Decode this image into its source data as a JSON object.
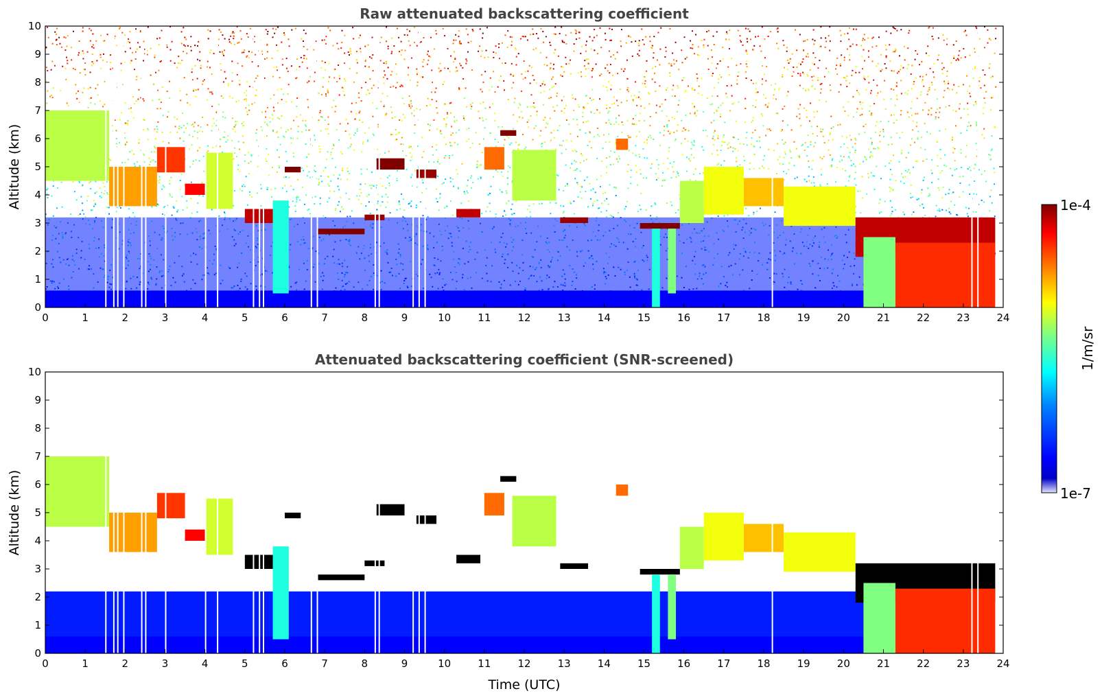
{
  "chart_data": [
    {
      "type": "heatmap",
      "title": "Raw attenuated backscattering coefficient",
      "ylabel": "Altitude (km)",
      "xlabel": "",
      "xlim": [
        0,
        24
      ],
      "ylim": [
        0,
        10
      ],
      "xticks": [
        "0",
        "1",
        "2",
        "3",
        "4",
        "5",
        "6",
        "7",
        "8",
        "9",
        "10",
        "11",
        "12",
        "13",
        "14",
        "15",
        "16",
        "17",
        "18",
        "19",
        "20",
        "21",
        "22",
        "23",
        "24"
      ],
      "yticks": [
        "0",
        "1",
        "2",
        "3",
        "4",
        "5",
        "6",
        "7",
        "8",
        "9",
        "10"
      ],
      "noise_above_clouds": true,
      "layers": [
        {
          "t0": 0.0,
          "t1": 1.6,
          "h0": 4.5,
          "h1": 7.0,
          "value": 0.6
        },
        {
          "t0": 1.6,
          "t1": 2.8,
          "h0": 3.6,
          "h1": 5.0,
          "value": 0.75
        },
        {
          "t0": 2.8,
          "t1": 3.5,
          "h0": 4.8,
          "h1": 5.7,
          "value": 0.85
        },
        {
          "t0": 3.5,
          "t1": 4.0,
          "h0": 4.0,
          "h1": 4.4,
          "value": 0.9
        },
        {
          "t0": 4.0,
          "t1": 4.7,
          "h0": 3.5,
          "h1": 5.5,
          "value": 0.62
        },
        {
          "t0": 5.0,
          "t1": 5.8,
          "h0": 3.0,
          "h1": 3.5,
          "value": 0.95
        },
        {
          "t0": 5.7,
          "t1": 6.1,
          "h0": 0.5,
          "h1": 3.8,
          "value": 0.45
        },
        {
          "t0": 6.0,
          "t1": 6.4,
          "h0": 4.8,
          "h1": 5.0,
          "value": 1.0
        },
        {
          "t0": 6.8,
          "t1": 8.0,
          "h0": 2.6,
          "h1": 2.8,
          "value": 1.0
        },
        {
          "t0": 8.0,
          "t1": 8.5,
          "h0": 3.1,
          "h1": 3.3,
          "value": 0.98
        },
        {
          "t0": 8.3,
          "t1": 9.0,
          "h0": 4.9,
          "h1": 5.3,
          "value": 1.0
        },
        {
          "t0": 9.3,
          "t1": 9.8,
          "h0": 4.6,
          "h1": 4.9,
          "value": 0.98
        },
        {
          "t0": 10.3,
          "t1": 10.9,
          "h0": 3.2,
          "h1": 3.5,
          "value": 0.95
        },
        {
          "t0": 11.0,
          "t1": 11.5,
          "h0": 4.9,
          "h1": 5.7,
          "value": 0.8
        },
        {
          "t0": 11.4,
          "t1": 11.8,
          "h0": 6.1,
          "h1": 6.3,
          "value": 1.0
        },
        {
          "t0": 11.7,
          "t1": 12.8,
          "h0": 3.8,
          "h1": 5.6,
          "value": 0.6
        },
        {
          "t0": 12.9,
          "t1": 13.6,
          "h0": 3.0,
          "h1": 3.2,
          "value": 0.98
        },
        {
          "t0": 14.3,
          "t1": 14.6,
          "h0": 5.6,
          "h1": 6.0,
          "value": 0.8
        },
        {
          "t0": 14.9,
          "t1": 15.9,
          "h0": 2.8,
          "h1": 3.0,
          "value": 1.0
        },
        {
          "t0": 15.2,
          "t1": 15.4,
          "h0": 0.0,
          "h1": 2.8,
          "value": 0.45
        },
        {
          "t0": 15.6,
          "t1": 15.8,
          "h0": 0.5,
          "h1": 2.8,
          "value": 0.55
        },
        {
          "t0": 15.9,
          "t1": 16.5,
          "h0": 3.0,
          "h1": 4.5,
          "value": 0.6
        },
        {
          "t0": 16.5,
          "t1": 17.5,
          "h0": 3.3,
          "h1": 5.0,
          "value": 0.65
        },
        {
          "t0": 17.5,
          "t1": 18.5,
          "h0": 3.6,
          "h1": 4.6,
          "value": 0.72
        },
        {
          "t0": 18.5,
          "t1": 20.3,
          "h0": 2.9,
          "h1": 4.3,
          "value": 0.65
        },
        {
          "t0": 20.3,
          "t1": 23.8,
          "h0": 1.8,
          "h1": 3.2,
          "value": 0.95
        },
        {
          "t0": 20.5,
          "t1": 21.3,
          "h0": 0.0,
          "h1": 2.5,
          "value": 0.55
        },
        {
          "t0": 21.3,
          "t1": 23.8,
          "h0": 0.0,
          "h1": 2.3,
          "value": 0.86
        }
      ],
      "missing_profiles": [
        1.5,
        1.7,
        1.8,
        1.95,
        2.4,
        2.5,
        3.0,
        4.0,
        4.3,
        5.2,
        5.35,
        5.45,
        6.65,
        6.8,
        8.25,
        8.35,
        9.2,
        9.35,
        9.5,
        18.2,
        23.2,
        23.35
      ]
    },
    {
      "type": "heatmap",
      "title": "Attenuated backscattering coefficient (SNR-screened)",
      "ylabel": "Altitude (km)",
      "xlabel": "Time (UTC)",
      "xlim": [
        0,
        24
      ],
      "ylim": [
        0,
        10
      ],
      "xticks": [
        "0",
        "1",
        "2",
        "3",
        "4",
        "5",
        "6",
        "7",
        "8",
        "9",
        "10",
        "11",
        "12",
        "13",
        "14",
        "15",
        "16",
        "17",
        "18",
        "19",
        "20",
        "21",
        "22",
        "23",
        "24"
      ],
      "yticks": [
        "0",
        "1",
        "2",
        "3",
        "4",
        "5",
        "6",
        "7",
        "8",
        "9",
        "10"
      ],
      "noise_above_clouds": false,
      "saturated_color": "#000000",
      "layers": [
        {
          "t0": 0.0,
          "t1": 1.6,
          "h0": 4.5,
          "h1": 7.0,
          "value": 0.6
        },
        {
          "t0": 1.6,
          "t1": 2.8,
          "h0": 3.6,
          "h1": 5.0,
          "value": 0.75
        },
        {
          "t0": 2.8,
          "t1": 3.5,
          "h0": 4.8,
          "h1": 5.7,
          "value": 0.85
        },
        {
          "t0": 3.5,
          "t1": 4.0,
          "h0": 4.0,
          "h1": 4.4,
          "value": 0.9
        },
        {
          "t0": 4.0,
          "t1": 4.7,
          "h0": 3.5,
          "h1": 5.5,
          "value": 0.62
        },
        {
          "t0": 5.0,
          "t1": 5.8,
          "h0": 3.0,
          "h1": 3.5,
          "value": 0.95
        },
        {
          "t0": 5.7,
          "t1": 6.1,
          "h0": 0.5,
          "h1": 3.8,
          "value": 0.45
        },
        {
          "t0": 6.0,
          "t1": 6.4,
          "h0": 4.8,
          "h1": 5.0,
          "value": 1.0
        },
        {
          "t0": 6.8,
          "t1": 8.0,
          "h0": 2.6,
          "h1": 2.8,
          "value": 1.0
        },
        {
          "t0": 8.0,
          "t1": 8.5,
          "h0": 3.1,
          "h1": 3.3,
          "value": 0.98
        },
        {
          "t0": 8.3,
          "t1": 9.0,
          "h0": 4.9,
          "h1": 5.3,
          "value": 1.0
        },
        {
          "t0": 9.3,
          "t1": 9.8,
          "h0": 4.6,
          "h1": 4.9,
          "value": 0.98
        },
        {
          "t0": 10.3,
          "t1": 10.9,
          "h0": 3.2,
          "h1": 3.5,
          "value": 0.95
        },
        {
          "t0": 11.0,
          "t1": 11.5,
          "h0": 4.9,
          "h1": 5.7,
          "value": 0.8
        },
        {
          "t0": 11.4,
          "t1": 11.8,
          "h0": 6.1,
          "h1": 6.3,
          "value": 1.0
        },
        {
          "t0": 11.7,
          "t1": 12.8,
          "h0": 3.8,
          "h1": 5.6,
          "value": 0.6
        },
        {
          "t0": 12.9,
          "t1": 13.6,
          "h0": 3.0,
          "h1": 3.2,
          "value": 0.98
        },
        {
          "t0": 14.3,
          "t1": 14.6,
          "h0": 5.6,
          "h1": 6.0,
          "value": 0.8
        },
        {
          "t0": 14.9,
          "t1": 15.9,
          "h0": 2.8,
          "h1": 3.0,
          "value": 1.0
        },
        {
          "t0": 15.2,
          "t1": 15.4,
          "h0": 0.0,
          "h1": 2.8,
          "value": 0.45
        },
        {
          "t0": 15.6,
          "t1": 15.8,
          "h0": 0.5,
          "h1": 2.8,
          "value": 0.55
        },
        {
          "t0": 15.9,
          "t1": 16.5,
          "h0": 3.0,
          "h1": 4.5,
          "value": 0.6
        },
        {
          "t0": 16.5,
          "t1": 17.5,
          "h0": 3.3,
          "h1": 5.0,
          "value": 0.65
        },
        {
          "t0": 17.5,
          "t1": 18.5,
          "h0": 3.6,
          "h1": 4.6,
          "value": 0.72
        },
        {
          "t0": 18.5,
          "t1": 20.3,
          "h0": 2.9,
          "h1": 4.3,
          "value": 0.65
        },
        {
          "t0": 20.3,
          "t1": 23.8,
          "h0": 1.8,
          "h1": 3.2,
          "value": 0.95
        },
        {
          "t0": 20.5,
          "t1": 21.3,
          "h0": 0.0,
          "h1": 2.5,
          "value": 0.55
        },
        {
          "t0": 21.3,
          "t1": 23.8,
          "h0": 0.0,
          "h1": 2.3,
          "value": 0.86
        }
      ],
      "missing_profiles": [
        1.5,
        1.7,
        1.8,
        1.95,
        2.4,
        2.5,
        3.0,
        4.0,
        4.3,
        5.2,
        5.35,
        5.45,
        6.65,
        6.8,
        8.25,
        8.35,
        9.2,
        9.35,
        9.5,
        18.2,
        23.2,
        23.35
      ]
    }
  ],
  "colorbar": {
    "label": "1/m/sr",
    "min_label": "1e-7",
    "max_label": "1e-4",
    "scale": "log",
    "colormap": "jet",
    "colors": [
      "#e6e6ff",
      "#0000c8",
      "#0000ff",
      "#0080ff",
      "#00ffff",
      "#80ff80",
      "#ffff00",
      "#ff8000",
      "#ff0000",
      "#800000"
    ]
  }
}
